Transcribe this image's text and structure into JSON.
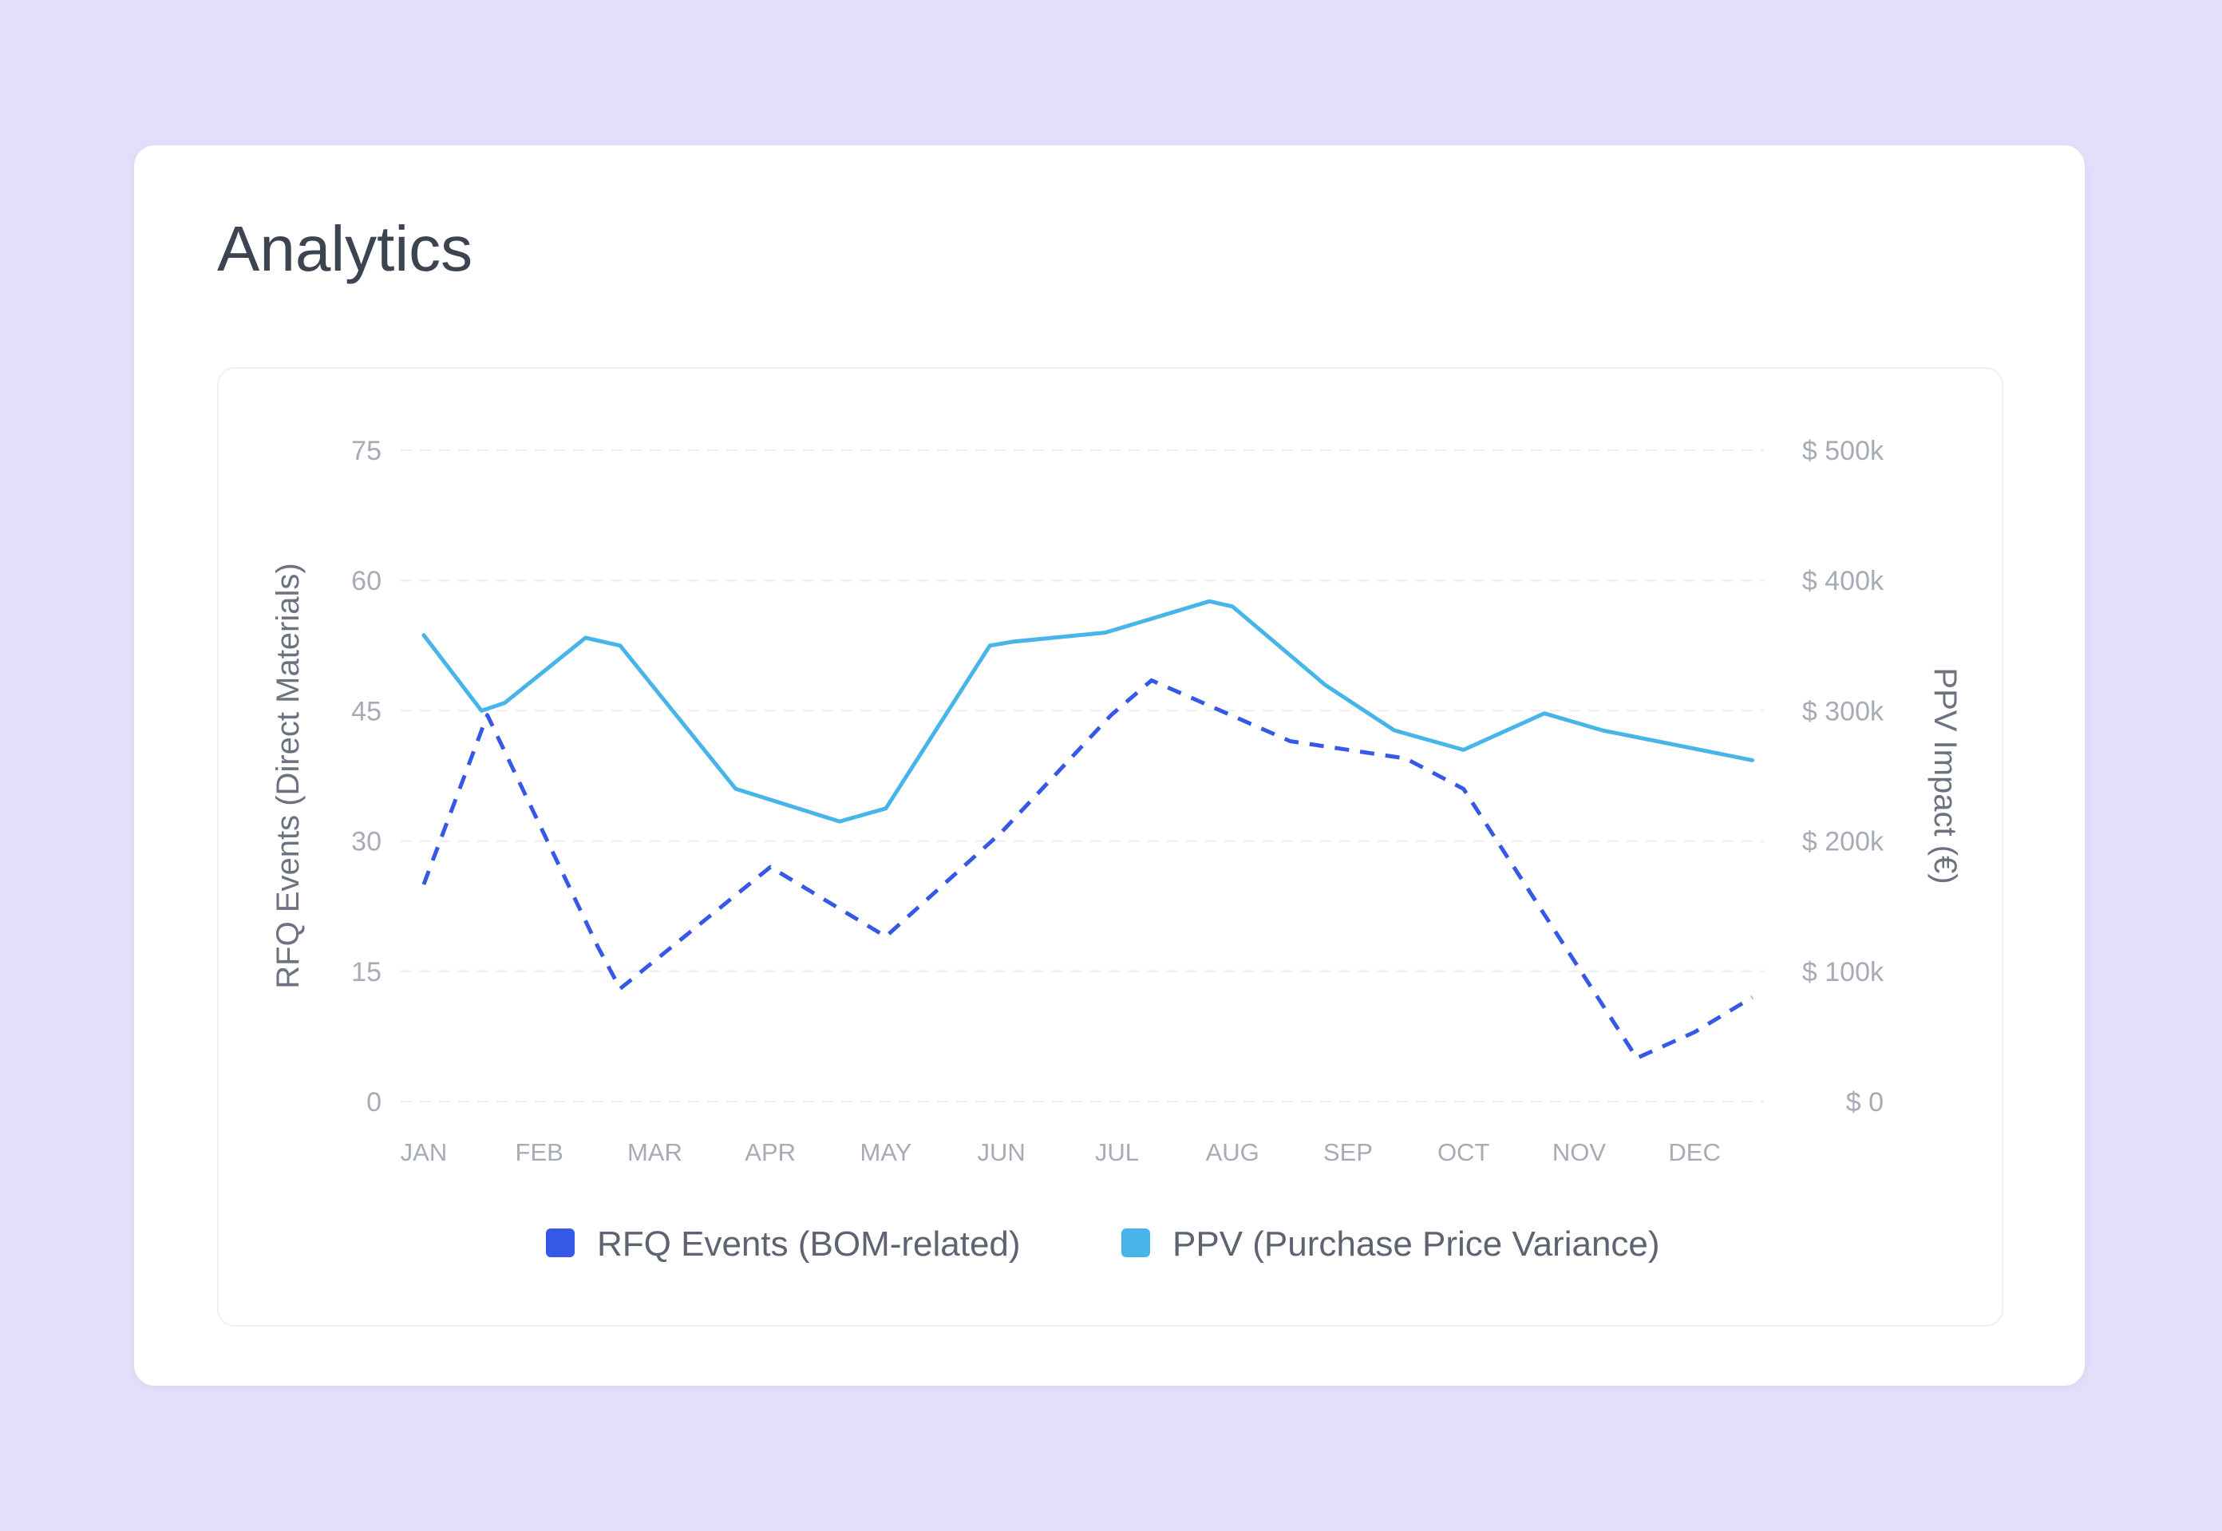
{
  "title": "Analytics",
  "colors": {
    "rfq": "#3558e6",
    "ppv": "#48b5ea",
    "grid": "#eceef2"
  },
  "chart_data": {
    "type": "line",
    "categories": [
      "JAN",
      "FEB",
      "MAR",
      "APR",
      "MAY",
      "JUN",
      "JUL",
      "AUG",
      "SEP",
      "OCT",
      "NOV",
      "DEC"
    ],
    "x": [
      0.0,
      0.5,
      1.0,
      1.3,
      2.0,
      2.4,
      3.0,
      3.4,
      4.0,
      4.35,
      5.0,
      6.0,
      6.5,
      7.0,
      7.3,
      8.0,
      8.5,
      9.0,
      9.45,
      10.0,
      10.5,
      11.0,
      11.5
    ],
    "series": [
      {
        "name": "RFQ Events (BOM-related)",
        "axis": "left",
        "style": "dashed",
        "color": "#3558e6",
        "points": [
          [
            0,
            25
          ],
          [
            0.55,
            44.5
          ],
          [
            1.5,
            18
          ],
          [
            1.7,
            13
          ],
          [
            3.0,
            27
          ],
          [
            4.0,
            19
          ],
          [
            5.0,
            31
          ],
          [
            5.95,
            44.5
          ],
          [
            6.3,
            48.5
          ],
          [
            7.5,
            41.5
          ],
          [
            8.5,
            39.5
          ],
          [
            9.0,
            36
          ],
          [
            10.5,
            5
          ],
          [
            11.0,
            8
          ],
          [
            11.5,
            12
          ]
        ]
      },
      {
        "name": "PPV (Purchase Price Variance)",
        "axis": "right",
        "style": "solid",
        "color": "#48b5ea",
        "points": [
          [
            0,
            358000
          ],
          [
            0.5,
            300000
          ],
          [
            0.7,
            306000
          ],
          [
            1.4,
            356000
          ],
          [
            1.7,
            350000
          ],
          [
            2.7,
            240000
          ],
          [
            3.6,
            215000
          ],
          [
            4.0,
            225000
          ],
          [
            4.9,
            350000
          ],
          [
            5.1,
            353000
          ],
          [
            5.9,
            360000
          ],
          [
            6.8,
            384000
          ],
          [
            7.0,
            380000
          ],
          [
            7.8,
            320000
          ],
          [
            8.4,
            285000
          ],
          [
            9.0,
            270000
          ],
          [
            9.7,
            298000
          ],
          [
            10.2,
            285000
          ],
          [
            11.5,
            262000
          ]
        ]
      }
    ],
    "y_left": {
      "label": "RFQ Events (Direct Materials)",
      "ticks": [
        "0",
        "15",
        "30",
        "45",
        "60",
        "75"
      ],
      "ylim": [
        0,
        75
      ]
    },
    "y_right": {
      "label": "PPV Impact (€)",
      "ticks": [
        "$ 0",
        "$ 100k",
        "$ 200k",
        "$ 300k",
        "$ 400k",
        "$ 500k"
      ],
      "ylim": [
        0,
        500000
      ]
    },
    "xlim": [
      -0.2,
      11.6
    ],
    "grid": true,
    "legend": {
      "position": "bottom-center",
      "entries": [
        "RFQ Events (BOM-related)",
        "PPV (Purchase Price Variance)"
      ]
    }
  }
}
